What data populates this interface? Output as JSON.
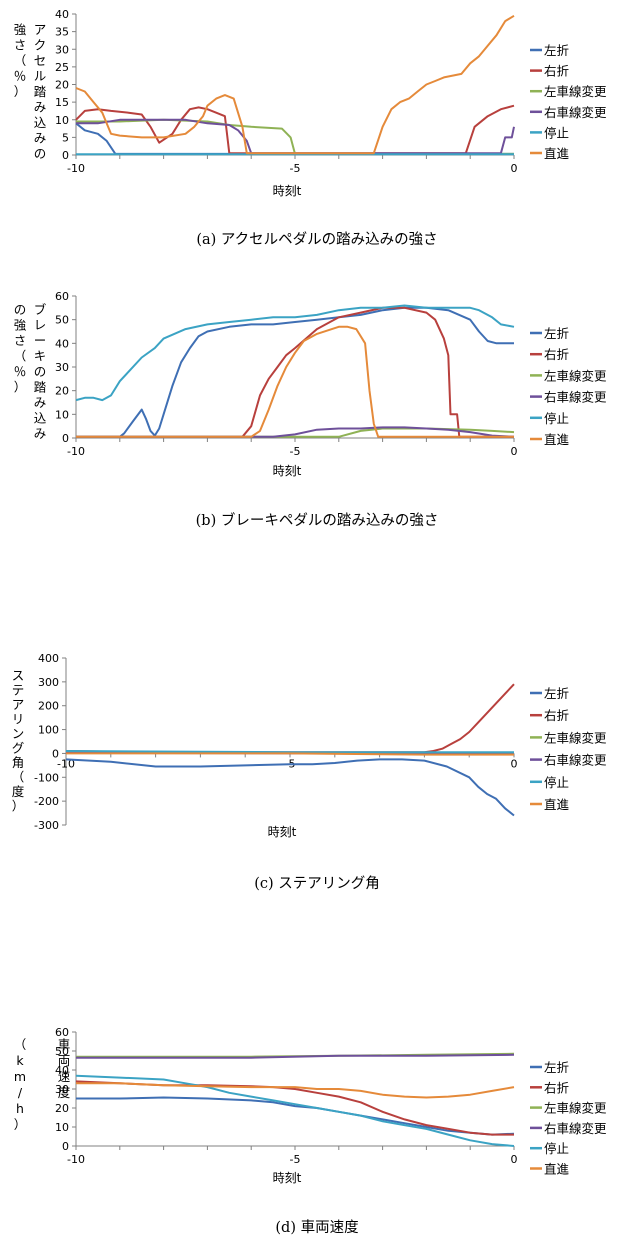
{
  "colors": {
    "左折": "#3f6fb4",
    "右折": "#b8403d",
    "左車線変更": "#8fb255",
    "右車線変更": "#6e509a",
    "停止": "#3ba3c4",
    "直進": "#e58a3a"
  },
  "chart_data": [
    {
      "id": "a",
      "type": "line",
      "caption": "(a) アクセルペダルの踏み込みの強さ",
      "ylabel": "アクセル踏み込みの強さ（％）",
      "xlabel": "時刻t",
      "xlim": [
        -10,
        0
      ],
      "ylim": [
        0,
        40
      ],
      "yticks": [
        0,
        5,
        10,
        15,
        20,
        25,
        30,
        35,
        40
      ],
      "xticks": [
        -10,
        -5,
        0
      ],
      "legend_position": "right",
      "series": [
        {
          "name": "左折",
          "x": [
            -10,
            -9.8,
            -9.5,
            -9.3,
            -9.1,
            -8,
            -5,
            -1,
            0
          ],
          "y": [
            9,
            7,
            6,
            4,
            0.3,
            0.3,
            0.3,
            0.3,
            0.3
          ]
        },
        {
          "name": "右折",
          "x": [
            -10,
            -9.8,
            -9.5,
            -9.2,
            -8.8,
            -8.5,
            -8.3,
            -8.1,
            -7.8,
            -7.6,
            -7.4,
            -7.2,
            -7.0,
            -6.8,
            -6.6,
            -6.5,
            -6,
            -5,
            -2,
            -1.1,
            -0.9,
            -0.6,
            -0.3,
            0
          ],
          "y": [
            10,
            12.5,
            13,
            12.5,
            12,
            11.5,
            8,
            3.5,
            6,
            10,
            13,
            13.5,
            13,
            12,
            11,
            0.5,
            0.5,
            0.5,
            0.5,
            0.5,
            8,
            11,
            13,
            14
          ]
        },
        {
          "name": "左車線変更",
          "x": [
            -10,
            -9,
            -8,
            -7,
            -6.5,
            -6,
            -5.3,
            -5.1,
            -5,
            -4,
            -3,
            0
          ],
          "y": [
            9.5,
            9.5,
            10,
            9.5,
            8.5,
            8,
            7.5,
            5,
            0.3,
            0.3,
            0.3,
            0.3
          ]
        },
        {
          "name": "右車線変更",
          "x": [
            -10,
            -9.5,
            -9,
            -8.5,
            -8,
            -7.5,
            -7,
            -6.5,
            -6.3,
            -6.1,
            -6,
            -3,
            -0.3,
            -0.2,
            -0.05,
            0
          ],
          "y": [
            9,
            9,
            10,
            10,
            10,
            10,
            9,
            8.5,
            7,
            4,
            0.5,
            0.5,
            0.5,
            5,
            5,
            8
          ]
        },
        {
          "name": "停止",
          "x": [
            -10,
            -5,
            0
          ],
          "y": [
            0.2,
            0.2,
            0.2
          ]
        },
        {
          "name": "直進",
          "x": [
            -10,
            -9.8,
            -9.6,
            -9.4,
            -9.2,
            -9.0,
            -8.5,
            -8.0,
            -7.5,
            -7.3,
            -7.1,
            -7.0,
            -6.8,
            -6.6,
            -6.4,
            -6.2,
            -6.1,
            -5,
            -4,
            -3.2,
            -3.0,
            -2.8,
            -2.6,
            -2.4,
            -2.2,
            -2.0,
            -1.8,
            -1.6,
            -1.2,
            -1.0,
            -0.8,
            -0.6,
            -0.4,
            -0.2,
            0
          ],
          "y": [
            19,
            18,
            15,
            12,
            6,
            5.5,
            5,
            5,
            6,
            8,
            11,
            14,
            16,
            17,
            16,
            8,
            0.5,
            0.5,
            0.5,
            0.5,
            8,
            13,
            15,
            16,
            18,
            20,
            21,
            22,
            23,
            26,
            28,
            31,
            34,
            38,
            39.5
          ]
        }
      ]
    },
    {
      "id": "b",
      "type": "line",
      "caption": "(b) ブレーキペダルの踏み込みの強さ",
      "ylabel": "ブレーキの踏み込みの強さ（％）",
      "xlabel": "時刻t",
      "xlim": [
        -10,
        0
      ],
      "ylim": [
        0,
        60
      ],
      "yticks": [
        0,
        10,
        20,
        30,
        40,
        50,
        60
      ],
      "xticks": [
        -10,
        -5,
        0
      ],
      "legend_position": "right",
      "series": [
        {
          "name": "左折",
          "x": [
            -10,
            -9,
            -8.9,
            -8.7,
            -8.5,
            -8.4,
            -8.3,
            -8.2,
            -8.1,
            -8.0,
            -7.8,
            -7.6,
            -7.4,
            -7.2,
            -7.0,
            -6.5,
            -6.0,
            -5.5,
            -5.0,
            -4.5,
            -4.0,
            -3.5,
            -3.0,
            -2.5,
            -2.0,
            -1.5,
            -1.0,
            -0.8,
            -0.6,
            -0.4,
            -0.2,
            0
          ],
          "y": [
            0.5,
            0.5,
            2,
            7,
            12,
            8,
            3,
            1,
            4,
            10,
            22,
            32,
            38,
            43,
            45,
            47,
            48,
            48,
            49,
            50,
            51,
            52,
            54,
            55,
            55,
            54,
            50,
            45,
            41,
            40,
            40,
            40
          ]
        },
        {
          "name": "右折",
          "x": [
            -10,
            -6.2,
            -6.0,
            -5.8,
            -5.6,
            -5.4,
            -5.2,
            -5.0,
            -4.5,
            -4.0,
            -3.5,
            -3.0,
            -2.5,
            -2.0,
            -1.8,
            -1.6,
            -1.5,
            -1.45,
            -1.3,
            -1.25,
            -1.0,
            0
          ],
          "y": [
            0.5,
            0.5,
            5,
            18,
            25,
            30,
            35,
            38,
            46,
            51,
            53,
            55,
            55,
            53,
            50,
            42,
            35,
            10,
            10,
            0.5,
            0.5,
            0.5
          ]
        },
        {
          "name": "左車線変更",
          "x": [
            -10,
            -5,
            -4,
            -3.5,
            -3,
            -2,
            -1,
            -0.5,
            0
          ],
          "y": [
            0.5,
            0.5,
            0.5,
            3,
            4,
            4,
            3.5,
            3,
            2.5
          ]
        },
        {
          "name": "右車線変更",
          "x": [
            -10,
            -5.5,
            -5.0,
            -4.5,
            -4.0,
            -3.5,
            -3.0,
            -2.5,
            -2.0,
            -1.5,
            -1.0,
            -0.5,
            0
          ],
          "y": [
            0.5,
            0.5,
            1.5,
            3.5,
            4,
            4,
            4.5,
            4.5,
            4,
            3.5,
            2.5,
            1,
            0.5
          ]
        },
        {
          "name": "停止",
          "x": [
            -10,
            -9.8,
            -9.6,
            -9.4,
            -9.2,
            -9.0,
            -8.8,
            -8.5,
            -8.2,
            -8.0,
            -7.5,
            -7.0,
            -6.5,
            -6.0,
            -5.5,
            -5.0,
            -4.5,
            -4.0,
            -3.5,
            -3.0,
            -2.5,
            -2.0,
            -1.5,
            -1.0,
            -0.8,
            -0.5,
            -0.3,
            0
          ],
          "y": [
            16,
            17,
            17,
            16,
            18,
            24,
            28,
            34,
            38,
            42,
            46,
            48,
            49,
            50,
            51,
            51,
            52,
            54,
            55,
            55,
            56,
            55,
            55,
            55,
            54,
            51,
            48,
            47
          ]
        },
        {
          "name": "直進",
          "x": [
            -10,
            -6.0,
            -5.8,
            -5.6,
            -5.4,
            -5.2,
            -5.0,
            -4.8,
            -4.5,
            -4.0,
            -3.8,
            -3.6,
            -3.4,
            -3.3,
            -3.2,
            -3.1,
            -3.0,
            0
          ],
          "y": [
            0.5,
            0.5,
            3,
            12,
            22,
            30,
            36,
            41,
            44,
            47,
            47,
            46,
            40,
            20,
            6,
            0.5,
            0.5,
            0.5
          ]
        }
      ]
    },
    {
      "id": "c",
      "type": "line",
      "caption": "(c) ステアリング角",
      "ylabel": "ステアリング角（度）",
      "xlabel": "時刻t",
      "xlim": [
        -10,
        0
      ],
      "ylim": [
        -300,
        400
      ],
      "yticks": [
        -300,
        -200,
        -100,
        0,
        100,
        200,
        300,
        400
      ],
      "xticks": [
        -10,
        -5,
        0
      ],
      "legend_position": "right",
      "series": [
        {
          "name": "左折",
          "x": [
            -10,
            -9,
            -8,
            -7,
            -6,
            -5,
            -4.5,
            -4,
            -3.5,
            -3,
            -2.5,
            -2,
            -1.5,
            -1,
            -0.8,
            -0.6,
            -0.4,
            -0.2,
            0
          ],
          "y": [
            -25,
            -35,
            -55,
            -55,
            -50,
            -45,
            -45,
            -40,
            -30,
            -25,
            -25,
            -30,
            -55,
            -100,
            -140,
            -170,
            -190,
            -230,
            -260
          ]
        },
        {
          "name": "右折",
          "x": [
            -10,
            -8,
            -6,
            -4,
            -2,
            -1.8,
            -1.6,
            -1.4,
            -1.2,
            -1.0,
            -0.8,
            -0.6,
            -0.4,
            -0.2,
            0
          ],
          "y": [
            10,
            5,
            5,
            5,
            5,
            10,
            20,
            40,
            60,
            90,
            130,
            170,
            210,
            250,
            290
          ]
        },
        {
          "name": "左車線変更",
          "x": [
            -10,
            -5,
            0
          ],
          "y": [
            5,
            3,
            0
          ]
        },
        {
          "name": "右車線変更",
          "x": [
            -10,
            -5,
            0
          ],
          "y": [
            3,
            0,
            3
          ]
        },
        {
          "name": "停止",
          "x": [
            -10,
            -5,
            0
          ],
          "y": [
            10,
            5,
            5
          ]
        },
        {
          "name": "直進",
          "x": [
            -10,
            -5,
            -2,
            0
          ],
          "y": [
            0,
            0,
            -5,
            -5
          ]
        }
      ]
    },
    {
      "id": "d",
      "type": "line",
      "caption": "(d) 車両速度",
      "ylabel": "車両速度（km/h）",
      "xlabel": "時刻t",
      "xlim": [
        -10,
        0
      ],
      "ylim": [
        0,
        60
      ],
      "yticks": [
        0,
        10,
        20,
        30,
        40,
        50,
        60
      ],
      "xticks": [
        -10,
        -5,
        0
      ],
      "legend_position": "right",
      "series": [
        {
          "name": "左折",
          "x": [
            -10,
            -9,
            -8,
            -7,
            -6,
            -5.5,
            -5,
            -4.5,
            -4,
            -3.5,
            -3,
            -2.5,
            -2,
            -1.5,
            -1,
            -0.5,
            0
          ],
          "y": [
            25,
            25,
            25.5,
            25,
            24,
            23,
            21,
            20,
            18,
            16,
            14,
            12,
            10,
            8,
            7,
            6,
            6.5
          ]
        },
        {
          "name": "右折",
          "x": [
            -10,
            -9,
            -8,
            -7,
            -6,
            -5.5,
            -5,
            -4.5,
            -4,
            -3.5,
            -3,
            -2.5,
            -2,
            -1.5,
            -1,
            -0.5,
            0
          ],
          "y": [
            34,
            33,
            32,
            32,
            31.5,
            31,
            30,
            28,
            26,
            23,
            18,
            14,
            11,
            9,
            7,
            6,
            6
          ]
        },
        {
          "name": "左車線変更",
          "x": [
            -10,
            -8,
            -6,
            -4,
            -2,
            0
          ],
          "y": [
            47,
            47,
            47,
            47.5,
            48,
            48.5
          ]
        },
        {
          "name": "右車線変更",
          "x": [
            -10,
            -8,
            -6,
            -4,
            -2,
            0
          ],
          "y": [
            46.5,
            46.5,
            46.5,
            47.5,
            47.5,
            48
          ]
        },
        {
          "name": "停止",
          "x": [
            -10,
            -9,
            -8,
            -7.5,
            -7,
            -6.5,
            -6,
            -5.5,
            -5,
            -4.5,
            -4,
            -3.5,
            -3,
            -2.5,
            -2,
            -1.5,
            -1,
            -0.5,
            0
          ],
          "y": [
            37,
            36,
            35,
            33,
            31,
            28,
            26,
            24,
            22,
            20,
            18,
            16,
            13,
            11,
            9,
            6,
            3,
            1,
            0
          ]
        },
        {
          "name": "直進",
          "x": [
            -10,
            -9,
            -8,
            -7,
            -6,
            -5.5,
            -5,
            -4.5,
            -4,
            -3.5,
            -3,
            -2.5,
            -2,
            -1.5,
            -1,
            -0.5,
            0
          ],
          "y": [
            33,
            33,
            32,
            31.5,
            31,
            31,
            31,
            30,
            30,
            29,
            27,
            26,
            25.5,
            26,
            27,
            29,
            31
          ]
        }
      ]
    }
  ]
}
